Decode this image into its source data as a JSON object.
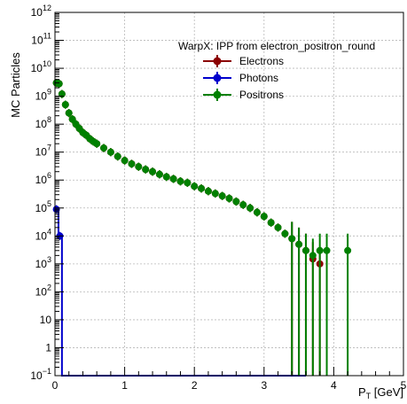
{
  "chart_data": {
    "type": "scatter",
    "title": "",
    "xlabel": {
      "main": "P",
      "sub": "T",
      "unit": " [GeV]"
    },
    "ylabel": "MC Particles",
    "xlim": [
      0,
      5
    ],
    "ylim": [
      0.1,
      1000000000000.0
    ],
    "yscale": "log",
    "grid": true,
    "legend_position": "top-right",
    "legend_title": "WarpX: IPP from electron_positron_round",
    "x_ticks": [
      {
        "v": 0,
        "label": "0"
      },
      {
        "v": 1,
        "label": "1"
      },
      {
        "v": 2,
        "label": "2"
      },
      {
        "v": 3,
        "label": "3"
      },
      {
        "v": 4,
        "label": "4"
      },
      {
        "v": 5,
        "label": "5"
      }
    ],
    "y_ticks": [
      {
        "exp": -1,
        "label": "10",
        "sup": "−1"
      },
      {
        "exp": 0,
        "label": "1",
        "sup": ""
      },
      {
        "exp": 1,
        "label": "10",
        "sup": ""
      },
      {
        "exp": 2,
        "label": "10",
        "sup": "2"
      },
      {
        "exp": 3,
        "label": "10",
        "sup": "3"
      },
      {
        "exp": 4,
        "label": "10",
        "sup": "4"
      },
      {
        "exp": 5,
        "label": "10",
        "sup": "5"
      },
      {
        "exp": 6,
        "label": "10",
        "sup": "6"
      },
      {
        "exp": 7,
        "label": "10",
        "sup": "7"
      },
      {
        "exp": 8,
        "label": "10",
        "sup": "8"
      },
      {
        "exp": 9,
        "label": "10",
        "sup": "9"
      },
      {
        "exp": 10,
        "label": "10",
        "sup": "10"
      },
      {
        "exp": 11,
        "label": "10",
        "sup": "11"
      },
      {
        "exp": 12,
        "label": "10",
        "sup": "12"
      }
    ],
    "series": [
      {
        "name": "Electrons",
        "color": "#8b0000",
        "x": [
          0.02,
          0.06,
          0.1,
          0.15,
          0.2,
          0.25,
          0.3,
          0.35,
          0.4,
          0.45,
          0.5,
          0.55,
          0.6,
          0.7,
          0.8,
          0.9,
          1.0,
          1.1,
          1.2,
          1.3,
          1.4,
          1.5,
          1.6,
          1.7,
          1.8,
          1.9,
          2.0,
          2.1,
          2.2,
          2.3,
          2.4,
          2.5,
          2.6,
          2.7,
          2.8,
          2.9,
          3.0,
          3.1,
          3.2,
          3.3,
          3.4,
          3.5,
          3.6,
          3.7,
          3.8
        ],
        "y": [
          3000000000.0,
          2800000000.0,
          1200000000.0,
          500000000.0,
          250000000.0,
          150000000.0,
          100000000.0,
          70000000.0,
          50000000.0,
          40000000.0,
          30000000.0,
          24000000.0,
          20000000.0,
          14000000.0,
          10000000.0,
          7000000.0,
          5000000.0,
          3800000.0,
          3000000.0,
          2400000.0,
          2000000.0,
          1600000.0,
          1300000.0,
          1100000.0,
          900000.0,
          800000.0,
          600000.0,
          500000.0,
          400000.0,
          330000.0,
          270000.0,
          220000.0,
          170000.0,
          130000.0,
          100000.0,
          70000.0,
          50000.0,
          30000.0,
          20000.0,
          12000.0,
          8000.0,
          5000.0,
          3000.0,
          1500.0,
          1000.0
        ]
      },
      {
        "name": "Photons",
        "color": "#0000cc",
        "x": [
          0.02,
          0.07
        ],
        "y": [
          90000.0,
          10000.0
        ]
      },
      {
        "name": "Positrons",
        "color": "#008000",
        "x": [
          0.02,
          0.06,
          0.1,
          0.15,
          0.2,
          0.25,
          0.3,
          0.35,
          0.4,
          0.45,
          0.5,
          0.55,
          0.6,
          0.7,
          0.8,
          0.9,
          1.0,
          1.1,
          1.2,
          1.3,
          1.4,
          1.5,
          1.6,
          1.7,
          1.8,
          1.9,
          2.0,
          2.1,
          2.2,
          2.3,
          2.4,
          2.5,
          2.6,
          2.7,
          2.8,
          2.9,
          3.0,
          3.1,
          3.2,
          3.3,
          3.4,
          3.5,
          3.6,
          3.7,
          3.8,
          3.9,
          4.2
        ],
        "y": [
          3000000000.0,
          2800000000.0,
          1200000000.0,
          500000000.0,
          250000000.0,
          150000000.0,
          100000000.0,
          70000000.0,
          50000000.0,
          40000000.0,
          30000000.0,
          24000000.0,
          20000000.0,
          14000000.0,
          10000000.0,
          7000000.0,
          5000000.0,
          3800000.0,
          3000000.0,
          2400000.0,
          2000000.0,
          1600000.0,
          1300000.0,
          1100000.0,
          900000.0,
          800000.0,
          600000.0,
          500000.0,
          400000.0,
          330000.0,
          270000.0,
          220000.0,
          170000.0,
          130000.0,
          100000.0,
          70000.0,
          50000.0,
          30000.0,
          20000.0,
          12000.0,
          8000.0,
          5000.0,
          3000.0,
          2000.0,
          3000.0,
          3000.0,
          3000.0
        ]
      }
    ]
  }
}
